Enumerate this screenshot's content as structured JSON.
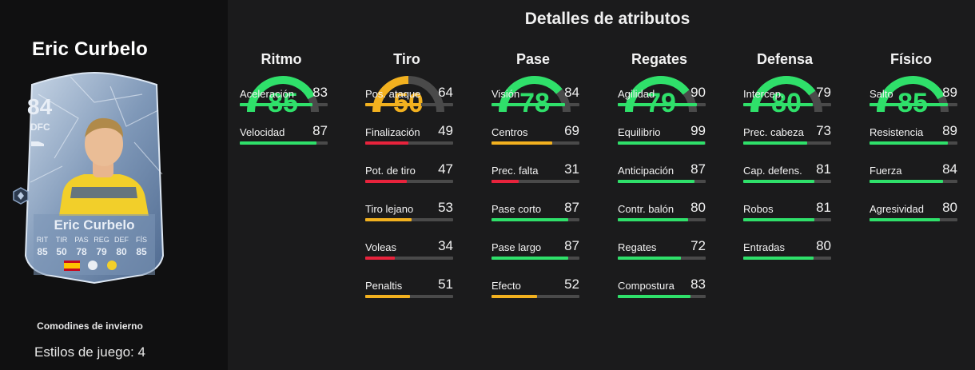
{
  "section_title": "Detalles de atributos",
  "player": {
    "name": "Eric Curbelo",
    "card": {
      "rating": "84",
      "position": "DFC",
      "name": "Eric Curbelo",
      "stats": [
        {
          "label": "RIT",
          "value": "85"
        },
        {
          "label": "TIR",
          "value": "50"
        },
        {
          "label": "PAS",
          "value": "78"
        },
        {
          "label": "REG",
          "value": "79"
        },
        {
          "label": "DEF",
          "value": "80"
        },
        {
          "label": "FÍS",
          "value": "85"
        }
      ]
    },
    "program": "Comodines de invierno",
    "playstyles": "Estilos de juego: 4"
  },
  "colors": {
    "green": "#2fe06a",
    "orange": "#f2b11f",
    "red": "#e8233c",
    "track": "#4a4a4a"
  },
  "categories": [
    {
      "name": "Ritmo",
      "value": "85",
      "attributes": [
        {
          "name": "Aceleración",
          "value": "83"
        },
        {
          "name": "Velocidad",
          "value": "87"
        }
      ]
    },
    {
      "name": "Tiro",
      "value": "50",
      "attributes": [
        {
          "name": "Pos. ataque",
          "value": "64"
        },
        {
          "name": "Finalización",
          "value": "49"
        },
        {
          "name": "Pot. de tiro",
          "value": "47"
        },
        {
          "name": "Tiro lejano",
          "value": "53"
        },
        {
          "name": "Voleas",
          "value": "34"
        },
        {
          "name": "Penaltis",
          "value": "51"
        }
      ]
    },
    {
      "name": "Pase",
      "value": "78",
      "attributes": [
        {
          "name": "Visión",
          "value": "84"
        },
        {
          "name": "Centros",
          "value": "69"
        },
        {
          "name": "Prec. falta",
          "value": "31"
        },
        {
          "name": "Pase corto",
          "value": "87"
        },
        {
          "name": "Pase largo",
          "value": "87"
        },
        {
          "name": "Efecto",
          "value": "52"
        }
      ]
    },
    {
      "name": "Regates",
      "value": "79",
      "attributes": [
        {
          "name": "Agilidad",
          "value": "90"
        },
        {
          "name": "Equilibrio",
          "value": "99"
        },
        {
          "name": "Anticipación",
          "value": "87"
        },
        {
          "name": "Contr. balón",
          "value": "80"
        },
        {
          "name": "Regates",
          "value": "72"
        },
        {
          "name": "Compostura",
          "value": "83"
        }
      ]
    },
    {
      "name": "Defensa",
      "value": "80",
      "attributes": [
        {
          "name": "Intercep.",
          "value": "79"
        },
        {
          "name": "Prec. cabeza",
          "value": "73"
        },
        {
          "name": "Cap. defens.",
          "value": "81"
        },
        {
          "name": "Robos",
          "value": "81"
        },
        {
          "name": "Entradas",
          "value": "80"
        }
      ]
    },
    {
      "name": "Físico",
      "value": "85",
      "attributes": [
        {
          "name": "Salto",
          "value": "89"
        },
        {
          "name": "Resistencia",
          "value": "89"
        },
        {
          "name": "Fuerza",
          "value": "84"
        },
        {
          "name": "Agresividad",
          "value": "80"
        }
      ]
    }
  ]
}
